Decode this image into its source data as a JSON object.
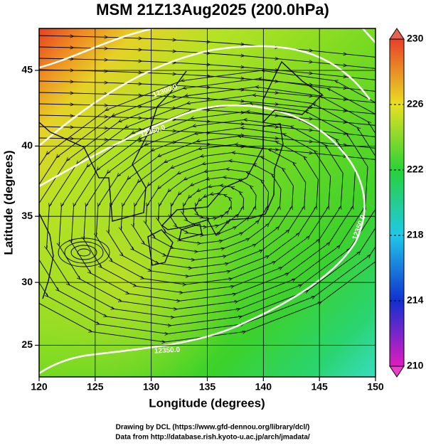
{
  "title": "MSM 21Z13Aug2025 (200.0hPa)",
  "map": {
    "xlabel": "Longitude (degrees)",
    "ylabel": "Latitude  (degrees)",
    "xlim": [
      120,
      150
    ],
    "ylim": [
      22.4,
      47.6
    ],
    "xticks": [
      120,
      125,
      130,
      135,
      140,
      145,
      150
    ],
    "yticks": [
      25,
      30,
      35,
      40,
      45
    ],
    "projection": "mercator",
    "grid": true,
    "contour_labels": [
      "12300.0",
      "12350.0",
      "12350.0",
      "12350.0"
    ]
  },
  "colorbar": {
    "zlim": [
      210,
      230
    ],
    "ticks": [
      210,
      214,
      218,
      222,
      226,
      230
    ]
  },
  "footer": [
    "Drawing by DCL (https://www.gfd-dennou.org/library/dcl/)",
    "Data from http://database.rish.kyoto-u.ac.jp/arch/jmadata/"
  ]
}
